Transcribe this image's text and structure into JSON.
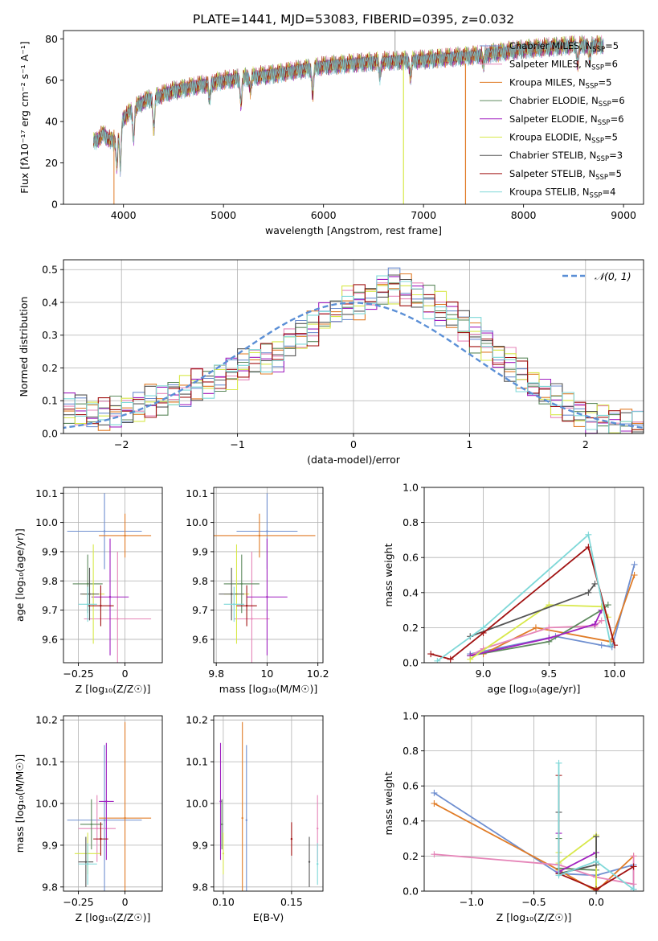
{
  "page_title": "PLATE=1441, MJD=53083, FIBERID=0395, z=0.032",
  "chart_data": [
    {
      "id": "spectrum",
      "type": "line",
      "title": "PLATE=1441, MJD=53083, FIBERID=0395, z=0.032",
      "xlabel": "wavelength [Angstrom, rest frame]",
      "ylabel": "Flux [fλ10⁻¹⁷ erg cm⁻² s⁻¹ A⁻¹]",
      "xlim": [
        3400,
        9200
      ],
      "ylim": [
        0,
        84
      ],
      "xticks": [
        4000,
        5000,
        6000,
        7000,
        8000,
        9000
      ],
      "yticks": [
        0,
        20,
        40,
        60,
        80
      ],
      "grid": false,
      "legend_position": "top-right",
      "continuum": {
        "x": [
          3700,
          3800,
          3900,
          4000,
          4200,
          4500,
          5000,
          5500,
          6000,
          6500,
          7000,
          7500,
          8000,
          8500,
          8800
        ],
        "y": [
          30,
          34,
          30,
          42,
          50,
          55,
          60,
          63,
          67,
          69,
          70,
          72,
          75,
          77,
          77
        ]
      },
      "absorption_dips": [
        {
          "x": 3934,
          "depth": 0.45
        },
        {
          "x": 3969,
          "depth": 0.55
        },
        {
          "x": 4101,
          "depth": 0.3
        },
        {
          "x": 4304,
          "depth": 0.3
        },
        {
          "x": 4861,
          "depth": 0.15
        },
        {
          "x": 5175,
          "depth": 0.2
        },
        {
          "x": 5270,
          "depth": 0.1
        },
        {
          "x": 5892,
          "depth": 0.2
        },
        {
          "x": 6563,
          "depth": 0.1
        },
        {
          "x": 6870,
          "depth": 0.12
        },
        {
          "x": 7600,
          "depth": 0.08
        },
        {
          "x": 8542,
          "depth": 0.12
        },
        {
          "x": 8662,
          "depth": 0.1
        }
      ],
      "series": [
        {
          "name": "Chabrier MILES, N_SSP=5",
          "color": "#6f8fd0"
        },
        {
          "name": "Salpeter MILES, N_SSP=6",
          "color": "#e585b8"
        },
        {
          "name": "Kroupa MILES, N_SSP=5",
          "color": "#e07b26"
        },
        {
          "name": "Chabrier ELODIE, N_SSP=6",
          "color": "#5e8a5e"
        },
        {
          "name": "Salpeter ELODIE, N_SSP=6",
          "color": "#a020c0"
        },
        {
          "name": "Kroupa ELODIE, N_SSP=5",
          "color": "#d8e84a"
        },
        {
          "name": "Chabrier STELIB, N_SSP=3",
          "color": "#555555"
        },
        {
          "name": "Salpeter STELIB, N_SSP=5",
          "color": "#a01010"
        },
        {
          "name": "Kroupa STELIB, N_SSP=4",
          "color": "#7fd8d8"
        }
      ],
      "legend_labels": [
        {
          "pre": "Chabrier MILES, N",
          "sub": "SSP",
          "post": "=5"
        },
        {
          "pre": "Salpeter MILES, N",
          "sub": "SSP",
          "post": "=6"
        },
        {
          "pre": "Kroupa MILES, N",
          "sub": "SSP",
          "post": "=5"
        },
        {
          "pre": "Chabrier ELODIE, N",
          "sub": "SSP",
          "post": "=6"
        },
        {
          "pre": "Salpeter ELODIE, N",
          "sub": "SSP",
          "post": "=6"
        },
        {
          "pre": "Kroupa ELODIE, N",
          "sub": "SSP",
          "post": "=5"
        },
        {
          "pre": "Chabrier STELIB, N",
          "sub": "SSP",
          "post": "=3"
        },
        {
          "pre": "Salpeter STELIB, N",
          "sub": "SSP",
          "post": "=5"
        },
        {
          "pre": "Kroupa STELIB, N",
          "sub": "SSP",
          "post": "=4"
        }
      ]
    },
    {
      "id": "residuals",
      "type": "histogram",
      "xlabel": "(data-model)/error",
      "ylabel": "Normed distribution",
      "xlim": [
        -2.5,
        2.5
      ],
      "ylim": [
        0,
        0.53
      ],
      "xticks": [
        -2,
        -1,
        0,
        1,
        2
      ],
      "yticks": [
        0.0,
        0.1,
        0.2,
        0.3,
        0.4,
        0.5
      ],
      "grid": true,
      "legend_position": "top-right",
      "gaussian_label": "𝒩(0, 1)",
      "gaussian_color": "#5b8fd6",
      "bin_width": 0.1,
      "bin_start": -2.5,
      "base_values": [
        0.07,
        0.07,
        0.06,
        0.06,
        0.07,
        0.07,
        0.08,
        0.1,
        0.1,
        0.12,
        0.13,
        0.15,
        0.15,
        0.17,
        0.18,
        0.21,
        0.22,
        0.23,
        0.24,
        0.28,
        0.3,
        0.32,
        0.35,
        0.37,
        0.4,
        0.4,
        0.42,
        0.44,
        0.45,
        0.44,
        0.42,
        0.4,
        0.38,
        0.36,
        0.33,
        0.3,
        0.27,
        0.24,
        0.21,
        0.18,
        0.15,
        0.12,
        0.1,
        0.08,
        0.06,
        0.05,
        0.04,
        0.03,
        0.03,
        0.02
      ]
    },
    {
      "id": "age_vs_Z",
      "type": "scatter",
      "xlabel": "Z [log₁₀(Z/Z☉)]",
      "ylabel": "age  [log₁₀(age/yr)]",
      "xlim": [
        -0.33,
        0.2
      ],
      "ylim": [
        9.52,
        10.12
      ],
      "xticks": [
        -0.25,
        0.0
      ],
      "yticks": [
        9.6,
        9.7,
        9.8,
        9.9,
        10.0,
        10.1
      ],
      "grid": true,
      "points": [
        {
          "x": -0.11,
          "y": 9.97,
          "xerr": 0.2,
          "yerr": 0.13,
          "color": "#6f8fd0"
        },
        {
          "x": 0.0,
          "y": 9.955,
          "xerr": 0.14,
          "yerr": 0.075,
          "color": "#e07b26"
        },
        {
          "x": -0.04,
          "y": 9.67,
          "xerr": 0.18,
          "yerr": 0.23,
          "color": "#e585b8"
        },
        {
          "x": -0.2,
          "y": 9.79,
          "xerr": 0.08,
          "yerr": 0.1,
          "color": "#5e8a5e"
        },
        {
          "x": -0.08,
          "y": 9.745,
          "xerr": 0.1,
          "yerr": 0.2,
          "color": "#a020c0"
        },
        {
          "x": -0.17,
          "y": 9.755,
          "xerr": 0.06,
          "yerr": 0.17,
          "color": "#d8e84a"
        },
        {
          "x": -0.19,
          "y": 9.755,
          "xerr": 0.05,
          "yerr": 0.09,
          "color": "#555555"
        },
        {
          "x": -0.13,
          "y": 9.715,
          "xerr": 0.07,
          "yerr": 0.07,
          "color": "#a01010"
        },
        {
          "x": -0.2,
          "y": 9.72,
          "xerr": 0.05,
          "yerr": 0.06,
          "color": "#7fd8d8"
        }
      ]
    },
    {
      "id": "age_vs_mass",
      "type": "scatter",
      "xlabel": "mass [log₁₀(M/M☉)]",
      "ylabel": "",
      "xlim": [
        9.79,
        10.22
      ],
      "ylim": [
        9.52,
        10.12
      ],
      "xticks": [
        9.8,
        10.0,
        10.2
      ],
      "yticks": [
        9.6,
        9.7,
        9.8,
        9.9,
        10.0,
        10.1
      ],
      "grid": true,
      "points": [
        {
          "x": 10.0,
          "y": 9.97,
          "xerr": 0.12,
          "yerr": 0.13,
          "color": "#6f8fd0"
        },
        {
          "x": 9.97,
          "y": 9.955,
          "xerr": 0.22,
          "yerr": 0.075,
          "color": "#e07b26"
        },
        {
          "x": 9.94,
          "y": 9.67,
          "xerr": 0.07,
          "yerr": 0.23,
          "color": "#e585b8"
        },
        {
          "x": 9.9,
          "y": 9.79,
          "xerr": 0.07,
          "yerr": 0.1,
          "color": "#5e8a5e"
        },
        {
          "x": 10.0,
          "y": 9.745,
          "xerr": 0.08,
          "yerr": 0.2,
          "color": "#a020c0"
        },
        {
          "x": 9.88,
          "y": 9.755,
          "xerr": 0.05,
          "yerr": 0.17,
          "color": "#d8e84a"
        },
        {
          "x": 9.86,
          "y": 9.755,
          "xerr": 0.05,
          "yerr": 0.09,
          "color": "#555555"
        },
        {
          "x": 9.92,
          "y": 9.715,
          "xerr": 0.04,
          "yerr": 0.07,
          "color": "#a01010"
        },
        {
          "x": 9.87,
          "y": 9.72,
          "xerr": 0.04,
          "yerr": 0.06,
          "color": "#7fd8d8"
        }
      ]
    },
    {
      "id": "weights_vs_age",
      "type": "line",
      "xlabel": "age  [log₁₀(age/yr)]",
      "ylabel": "mass weight",
      "xlim": [
        8.55,
        10.22
      ],
      "ylim": [
        0,
        1
      ],
      "xticks": [
        9.0,
        9.5,
        10.0
      ],
      "yticks": [
        0.0,
        0.2,
        0.4,
        0.6,
        0.8,
        1.0
      ],
      "grid": true,
      "series": [
        {
          "color": "#6f8fd0",
          "x": [
            8.9,
            9.55,
            9.9,
            9.98,
            10.15
          ],
          "y": [
            0.05,
            0.15,
            0.1,
            0.09,
            0.56
          ]
        },
        {
          "color": "#e07b26",
          "x": [
            9.0,
            9.4,
            9.97,
            10.15
          ],
          "y": [
            0.05,
            0.2,
            0.12,
            0.5
          ]
        },
        {
          "color": "#e585b8",
          "x": [
            8.9,
            9.0,
            9.5,
            9.85,
            9.9
          ],
          "y": [
            0.04,
            0.08,
            0.2,
            0.21,
            0.24
          ]
        },
        {
          "color": "#5e8a5e",
          "x": [
            8.9,
            9.5,
            9.9,
            9.95
          ],
          "y": [
            0.04,
            0.12,
            0.3,
            0.33
          ]
        },
        {
          "color": "#a020c0",
          "x": [
            8.9,
            9.5,
            9.85,
            9.9
          ],
          "y": [
            0.04,
            0.14,
            0.22,
            0.3
          ]
        },
        {
          "color": "#d8e84a",
          "x": [
            8.9,
            9.5,
            9.9,
            9.95
          ],
          "y": [
            0.02,
            0.33,
            0.32,
            0.26
          ]
        },
        {
          "color": "#555555",
          "x": [
            8.9,
            9.8,
            9.85
          ],
          "y": [
            0.15,
            0.4,
            0.45
          ]
        },
        {
          "color": "#a01010",
          "x": [
            8.6,
            8.75,
            9.0,
            9.8,
            10.0
          ],
          "y": [
            0.05,
            0.02,
            0.17,
            0.66,
            0.1
          ]
        },
        {
          "color": "#7fd8d8",
          "x": [
            8.65,
            9.0,
            9.8,
            9.97
          ],
          "y": [
            0.01,
            0.2,
            0.73,
            0.1
          ]
        }
      ]
    },
    {
      "id": "mass_vs_Z",
      "type": "scatter",
      "xlabel": "Z [log₁₀(Z/Z☉)]",
      "ylabel": "mass [log₁₀(M/M☉)]",
      "xlim": [
        -0.33,
        0.2
      ],
      "ylim": [
        9.79,
        10.21
      ],
      "xticks": [
        -0.25,
        0.0
      ],
      "yticks": [
        9.8,
        9.9,
        10.0,
        10.1,
        10.2
      ],
      "grid": true,
      "points": [
        {
          "x": -0.11,
          "y": 9.96,
          "xerr": 0.2,
          "yerr": 0.18,
          "color": "#6f8fd0"
        },
        {
          "x": 0.0,
          "y": 9.965,
          "xerr": 0.14,
          "yerr": 0.23,
          "color": "#e07b26"
        },
        {
          "x": -0.15,
          "y": 9.94,
          "xerr": 0.1,
          "yerr": 0.08,
          "color": "#e585b8"
        },
        {
          "x": -0.18,
          "y": 9.95,
          "xerr": 0.06,
          "yerr": 0.06,
          "color": "#5e8a5e"
        },
        {
          "x": -0.1,
          "y": 10.005,
          "xerr": 0.04,
          "yerr": 0.14,
          "color": "#a020c0"
        },
        {
          "x": -0.2,
          "y": 9.88,
          "xerr": 0.07,
          "yerr": 0.05,
          "color": "#d8e84a"
        },
        {
          "x": -0.21,
          "y": 9.86,
          "xerr": 0.04,
          "yerr": 0.06,
          "color": "#555555"
        },
        {
          "x": -0.13,
          "y": 9.915,
          "xerr": 0.04,
          "yerr": 0.04,
          "color": "#a01010"
        },
        {
          "x": -0.2,
          "y": 9.855,
          "xerr": 0.05,
          "yerr": 0.05,
          "color": "#7fd8d8"
        }
      ]
    },
    {
      "id": "mass_vs_ebv",
      "type": "scatter",
      "xlabel": "E(B-V)",
      "ylabel": "",
      "xlim": [
        0.093,
        0.173
      ],
      "ylim": [
        9.79,
        10.21
      ],
      "xticks": [
        0.1,
        0.15
      ],
      "yticks": [
        9.8,
        9.9,
        10.0,
        10.1,
        10.2
      ],
      "grid": true,
      "points": [
        {
          "x": 0.117,
          "y": 9.96,
          "yerr": 0.18,
          "color": "#6f8fd0"
        },
        {
          "x": 0.114,
          "y": 9.965,
          "yerr": 0.23,
          "color": "#e07b26"
        },
        {
          "x": 0.169,
          "y": 9.94,
          "yerr": 0.08,
          "color": "#e585b8"
        },
        {
          "x": 0.099,
          "y": 9.95,
          "yerr": 0.06,
          "color": "#5e8a5e"
        },
        {
          "x": 0.098,
          "y": 10.005,
          "yerr": 0.14,
          "color": "#a020c0"
        },
        {
          "x": 0.1,
          "y": 9.88,
          "yerr": 0.05,
          "color": "#d8e84a"
        },
        {
          "x": 0.163,
          "y": 9.86,
          "yerr": 0.06,
          "color": "#555555"
        },
        {
          "x": 0.15,
          "y": 9.915,
          "yerr": 0.04,
          "color": "#a01010"
        },
        {
          "x": 0.169,
          "y": 9.855,
          "yerr": 0.05,
          "color": "#7fd8d8"
        }
      ]
    },
    {
      "id": "weights_vs_Z",
      "type": "line",
      "xlabel": "Z [log₁₀(Z/Z☉)]",
      "ylabel": "mass weight",
      "xlim": [
        -1.38,
        0.38
      ],
      "ylim": [
        0,
        1
      ],
      "xticks": [
        -1.0,
        -0.5,
        0.0
      ],
      "yticks": [
        0.0,
        0.2,
        0.4,
        0.6,
        0.8,
        1.0
      ],
      "grid": true,
      "series": [
        {
          "color": "#6f8fd0",
          "x": [
            -1.3,
            -0.3,
            0.0,
            0.3,
            0.3
          ],
          "y": [
            0.56,
            0.1,
            0.09,
            0.15,
            0.01
          ]
        },
        {
          "color": "#e07b26",
          "x": [
            -1.3,
            -0.3,
            0.0,
            0.3
          ],
          "y": [
            0.5,
            0.12,
            0.0,
            0.2
          ]
        },
        {
          "color": "#e585b8",
          "x": [
            -1.3,
            -0.3,
            0.0,
            0.3,
            0.3
          ],
          "y": [
            0.21,
            0.15,
            0.08,
            0.04,
            0.2
          ]
        },
        {
          "color": "#5e8a5e",
          "x": [
            -0.3,
            -0.3,
            0.0,
            0.0
          ],
          "y": [
            0.3,
            0.13,
            0.12,
            0.0
          ]
        },
        {
          "color": "#a020c0",
          "x": [
            -0.3,
            -0.3,
            0.0,
            0.0
          ],
          "y": [
            0.33,
            0.11,
            0.22,
            0.0
          ]
        },
        {
          "color": "#d8e84a",
          "x": [
            -0.3,
            -0.3,
            0.0,
            0.0
          ],
          "y": [
            0.22,
            0.16,
            0.32,
            0.02
          ]
        },
        {
          "color": "#555555",
          "x": [
            -0.3,
            -0.3,
            0.0,
            0.0
          ],
          "y": [
            0.45,
            0.1,
            0.15,
            0.31
          ]
        },
        {
          "color": "#a01010",
          "x": [
            -0.3,
            -0.3,
            0.0,
            0.3
          ],
          "y": [
            0.66,
            0.1,
            0.01,
            0.14
          ]
        },
        {
          "color": "#7fd8d8",
          "x": [
            -0.3,
            -0.3,
            0.0,
            0.3
          ],
          "y": [
            0.73,
            0.09,
            0.17,
            0.01
          ]
        }
      ]
    }
  ]
}
